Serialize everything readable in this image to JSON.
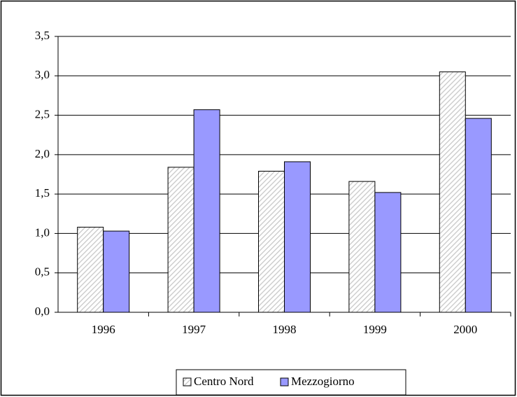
{
  "chart_data": {
    "type": "bar",
    "categories": [
      "1996",
      "1997",
      "1998",
      "1999",
      "2000"
    ],
    "series": [
      {
        "name": "Centro Nord",
        "color": "#c8c8c8",
        "pattern": "hatch",
        "values": [
          1.08,
          1.84,
          1.79,
          1.66,
          3.05
        ]
      },
      {
        "name": "Mezzogiorno",
        "color": "#9999ff",
        "values": [
          1.03,
          2.57,
          1.91,
          1.52,
          2.46
        ]
      }
    ],
    "ylim": [
      0,
      3.5
    ],
    "yticks": [
      {
        "value": 0,
        "label": "0,0"
      },
      {
        "value": 0.5,
        "label": "0,5"
      },
      {
        "value": 1,
        "label": "1,0"
      },
      {
        "value": 1.5,
        "label": "1,5"
      },
      {
        "value": 2,
        "label": "2,0"
      },
      {
        "value": 2.5,
        "label": "2,5"
      },
      {
        "value": 3,
        "label": "3,0"
      },
      {
        "value": 3.5,
        "label": "3,5"
      }
    ],
    "grid": true,
    "legend": "bottom"
  }
}
